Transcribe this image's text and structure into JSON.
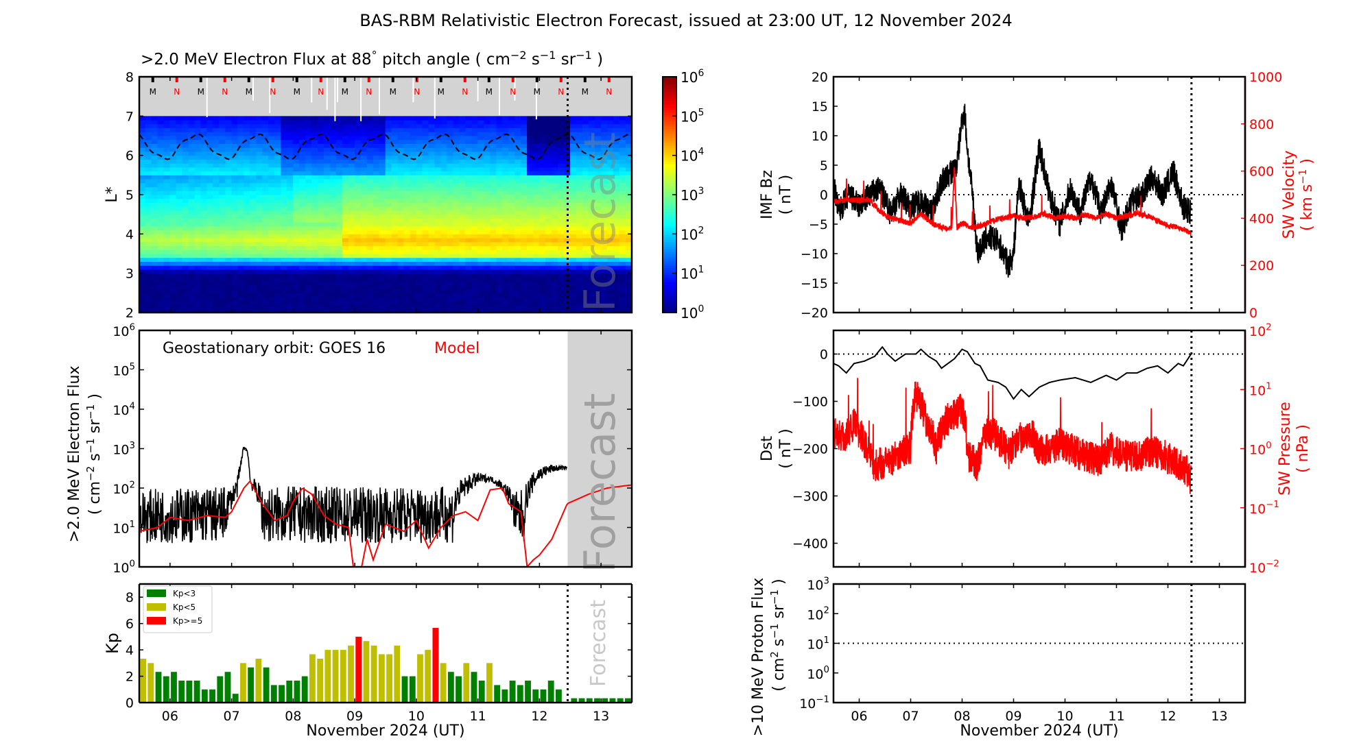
{
  "figure_title": "BAS-RBM Relativistic Electron Forecast, issued at 23:00 UT, 12 November 2024",
  "chart_data": [
    {
      "id": "lstar_flux",
      "type": "heatmap",
      "title_main": ">2.0 MeV Electron Flux at 88",
      "title_deg": "°",
      "title_rest": " pitch angle ( cm",
      "title_units": [
        "cm",
        "-2",
        "s",
        "-1",
        "sr",
        "-1"
      ],
      "ylabel": "L*",
      "xlim": [
        5.5,
        13.5
      ],
      "ylim": [
        2,
        8
      ],
      "yticks": [
        2,
        3,
        4,
        5,
        6,
        7,
        8
      ],
      "no_data_band": [
        7,
        8
      ],
      "forecast_start": 12.458,
      "forecast_label": "Forecast",
      "colorbar": {
        "scale": "log",
        "range": [
          1,
          1000000
        ],
        "ticks": [
          "10^0",
          "10^1",
          "10^2",
          "10^3",
          "10^4",
          "10^5",
          "10^6"
        ],
        "colormap": "jet"
      },
      "orbit_markers": [
        {
          "x": 5.72,
          "label": "M",
          "color": "#000000"
        },
        {
          "x": 6.11,
          "label": "N",
          "color": "#ff0000"
        },
        {
          "x": 6.5,
          "label": "M",
          "color": "#000000"
        },
        {
          "x": 6.89,
          "label": "N",
          "color": "#ff0000"
        },
        {
          "x": 7.28,
          "label": "M",
          "color": "#000000"
        },
        {
          "x": 7.67,
          "label": "N",
          "color": "#ff0000"
        },
        {
          "x": 8.06,
          "label": "M",
          "color": "#000000"
        },
        {
          "x": 8.45,
          "label": "N",
          "color": "#ff0000"
        },
        {
          "x": 8.84,
          "label": "M",
          "color": "#000000"
        },
        {
          "x": 9.23,
          "label": "N",
          "color": "#ff0000"
        },
        {
          "x": 9.62,
          "label": "M",
          "color": "#000000"
        },
        {
          "x": 10.01,
          "label": "N",
          "color": "#ff0000"
        },
        {
          "x": 10.4,
          "label": "M",
          "color": "#000000"
        },
        {
          "x": 10.79,
          "label": "N",
          "color": "#ff0000"
        },
        {
          "x": 11.18,
          "label": "M",
          "color": "#000000"
        },
        {
          "x": 11.57,
          "label": "N",
          "color": "#ff0000"
        },
        {
          "x": 11.96,
          "label": "M",
          "color": "#000000"
        },
        {
          "x": 12.35,
          "label": "N",
          "color": "#ff0000"
        },
        {
          "x": 12.74,
          "label": "M",
          "color": "#000000"
        },
        {
          "x": 13.13,
          "label": "N",
          "color": "#ff0000"
        }
      ],
      "magnetopause_dashed_line": {
        "min_L": 5.9,
        "max_L": 6.55,
        "period_days": 1.0,
        "description": "dashed black sinusoid"
      },
      "flux_structure": [
        {
          "L_range": [
            2.0,
            3.2
          ],
          "log10_flux": 0.0,
          "note": "slot/inner region dark blue"
        },
        {
          "L_range": [
            3.3,
            3.6
          ],
          "log10_flux": 2.0
        },
        {
          "L_range": [
            3.6,
            4.5
          ],
          "log10_flux_start": 3.2,
          "log10_flux_end": 4.2,
          "note": "heart of belt, intensifies after Nov 8.8"
        },
        {
          "L_range": [
            4.5,
            5.5
          ],
          "log10_flux": 2.8
        },
        {
          "L_range": [
            5.5,
            7.0
          ],
          "log10_flux": 1.2,
          "note": "outer region, dropouts near Nov 8-9 and 11.8"
        }
      ]
    },
    {
      "id": "geo_flux",
      "type": "line",
      "annotation": "Geostationary orbit:   GOES 16",
      "model_label": "Model",
      "ylabel": ">2.0 MeV Electron Flux",
      "ylabel_units": [
        "( cm",
        "-2",
        " s",
        "-1",
        " sr",
        "-1",
        " )"
      ],
      "yscale": "log",
      "ylim": [
        1,
        1000000
      ],
      "yticks": [
        "10^0",
        "10^1",
        "10^2",
        "10^3",
        "10^4",
        "10^5",
        "10^6"
      ],
      "xlim": [
        5.5,
        13.5
      ],
      "forecast_start": 12.458,
      "forecast_label": "Forecast",
      "series": [
        {
          "name": "GOES 16",
          "color": "#000000",
          "x": [
            5.5,
            6.0,
            6.5,
            6.9,
            7.0,
            7.1,
            7.15,
            7.2,
            7.25,
            7.3,
            7.5,
            8.0,
            8.5,
            9.0,
            9.5,
            10.0,
            10.4,
            10.6,
            10.8,
            11.0,
            11.2,
            11.4,
            11.6,
            11.75,
            11.9,
            12.0,
            12.2,
            12.45
          ],
          "y_env_low": [
            4,
            4,
            4,
            4,
            30,
            60,
            200,
            1000,
            800,
            100,
            4,
            4,
            4,
            4,
            4,
            4,
            4,
            4,
            60,
            120,
            150,
            80,
            4,
            4,
            80,
            150,
            250,
            300
          ],
          "y_env_high": [
            90,
            100,
            110,
            110,
            100,
            200,
            600,
            1200,
            1000,
            200,
            110,
            110,
            110,
            110,
            110,
            110,
            110,
            110,
            200,
            250,
            200,
            150,
            80,
            100,
            250,
            350,
            400,
            350
          ]
        },
        {
          "name": "Model",
          "color": "#ff0000",
          "x": [
            5.5,
            5.8,
            6.0,
            6.3,
            6.6,
            6.9,
            7.0,
            7.2,
            7.3,
            7.5,
            7.7,
            7.9,
            8.0,
            8.15,
            8.3,
            8.5,
            8.7,
            8.9,
            9.0,
            9.1,
            9.2,
            9.3,
            9.5,
            9.8,
            10.0,
            10.2,
            10.4,
            10.6,
            10.8,
            11.0,
            11.2,
            11.4,
            11.5,
            11.7,
            11.8,
            11.9,
            12.0,
            12.2,
            12.45,
            12.8,
            13.1,
            13.5
          ],
          "y": [
            8,
            10,
            18,
            15,
            20,
            18,
            25,
            100,
            150,
            40,
            15,
            20,
            45,
            100,
            70,
            20,
            12,
            10,
            0.5,
            0.8,
            5,
            1.5,
            12,
            8,
            15,
            3,
            10,
            20,
            25,
            15,
            90,
            100,
            40,
            25,
            1,
            1.5,
            2,
            5,
            40,
            70,
            100,
            120
          ]
        }
      ]
    },
    {
      "id": "kp",
      "type": "bar",
      "ylabel": "Kp",
      "ylim": [
        0,
        9
      ],
      "yticks": [
        0,
        2,
        4,
        6,
        8
      ],
      "xlim": [
        5.5,
        13.5
      ],
      "xticks": [
        "06",
        "07",
        "08",
        "09",
        "10",
        "11",
        "12",
        "13"
      ],
      "xlabel": "November 2024 (UT)",
      "bin_hours": 3,
      "first_bin_start": 5.5,
      "forecast_start": 12.458,
      "forecast_label": "Forecast",
      "legend": [
        {
          "label": "Kp<3",
          "color": "#008000"
        },
        {
          "label": "Kp<5",
          "color": "#bfbf00"
        },
        {
          "label": "Kp>=5",
          "color": "#ff0000"
        }
      ],
      "legend_position": "top-left",
      "values": [
        3.33,
        3.0,
        2.33,
        2.0,
        2.33,
        1.67,
        1.67,
        1.67,
        1.0,
        1.0,
        2.0,
        2.33,
        0.67,
        3.0,
        2.67,
        3.33,
        2.67,
        1.33,
        1.33,
        1.67,
        1.67,
        2.0,
        3.67,
        3.33,
        4.0,
        4.0,
        4.0,
        4.33,
        5.0,
        4.67,
        4.33,
        3.67,
        3.67,
        4.33,
        2.0,
        2.0,
        3.67,
        4.0,
        5.67,
        3.0,
        2.33,
        2.0,
        3.0,
        2.33,
        1.67,
        3.0,
        1.33,
        1.0,
        1.67,
        1.33,
        1.67,
        1.0,
        1.0,
        1.67,
        1.0
      ],
      "forecast_values": [
        0.33,
        0.33,
        0.33,
        0.33,
        0.33,
        0.33,
        0.33,
        0.33
      ]
    },
    {
      "id": "imf_sw_velocity",
      "type": "line",
      "ylabel_left": "IMF Bz",
      "ylabel_left_units": "( nT )",
      "ylabel_right": "SW Velocity",
      "ylabel_right_units": [
        "( km s",
        "-1",
        " )"
      ],
      "ylim_left": [
        -20,
        20
      ],
      "yticks_left": [
        -20,
        -15,
        -10,
        -5,
        0,
        5,
        10,
        15,
        20
      ],
      "ylim_right": [
        0,
        1000
      ],
      "yticks_right": [
        0,
        200,
        400,
        600,
        800,
        1000
      ],
      "xlim": [
        5.5,
        13.5
      ],
      "forecast_start": 12.458,
      "zero_line": 0,
      "series": [
        {
          "name": "IMF Bz",
          "color": "#000000",
          "axis": "left",
          "x": [
            5.5,
            5.6,
            5.8,
            6.0,
            6.2,
            6.4,
            6.6,
            6.8,
            7.0,
            7.2,
            7.4,
            7.6,
            7.8,
            7.9,
            8.0,
            8.05,
            8.1,
            8.2,
            8.3,
            8.5,
            8.7,
            8.9,
            9.0,
            9.1,
            9.3,
            9.5,
            9.7,
            9.9,
            10.1,
            10.3,
            10.5,
            10.7,
            10.9,
            11.1,
            11.3,
            11.5,
            11.7,
            11.9,
            12.1,
            12.3,
            12.45
          ],
          "y": [
            2,
            -3,
            0,
            -2,
            0,
            1,
            -3,
            0,
            -2,
            -1,
            -3,
            2,
            4,
            5,
            13,
            14,
            8,
            0,
            -10,
            -7,
            -8,
            -12,
            -10,
            2,
            -5,
            8,
            0,
            -5,
            1,
            -3,
            3,
            -3,
            2,
            -6,
            -1,
            0,
            3,
            0,
            4,
            -2,
            -3
          ]
        },
        {
          "name": "SW Velocity",
          "color": "#ff0000",
          "axis": "right",
          "x": [
            5.5,
            5.8,
            6.0,
            6.2,
            6.4,
            6.6,
            6.8,
            7.0,
            7.2,
            7.4,
            7.6,
            7.8,
            7.85,
            7.9,
            8.0,
            8.2,
            8.4,
            8.6,
            8.8,
            9.0,
            9.2,
            9.4,
            9.6,
            9.8,
            10.0,
            10.2,
            10.4,
            10.6,
            10.8,
            11.0,
            11.2,
            11.4,
            11.6,
            11.8,
            12.0,
            12.2,
            12.45
          ],
          "y": [
            470,
            480,
            475,
            480,
            430,
            400,
            390,
            380,
            420,
            380,
            360,
            360,
            620,
            360,
            380,
            360,
            370,
            390,
            400,
            410,
            400,
            405,
            420,
            400,
            410,
            400,
            415,
            400,
            420,
            400,
            410,
            420,
            410,
            390,
            370,
            360,
            340
          ]
        }
      ]
    },
    {
      "id": "dst_sw_pressure",
      "type": "line",
      "ylabel_left": "Dst",
      "ylabel_left_units": "( nT )",
      "ylabel_right": "SW Pressure",
      "ylabel_right_units": "( nPa )",
      "ylim_left": [
        -450,
        50
      ],
      "yticks_left": [
        -400,
        -300,
        -200,
        -100,
        0
      ],
      "ylim_right": [
        0.01,
        100
      ],
      "yscale_right": "log",
      "yticks_right": [
        "10^-2",
        "10^-1",
        "10^0",
        "10^1",
        "10^2"
      ],
      "xlim": [
        5.5,
        13.5
      ],
      "forecast_start": 12.458,
      "zero_line": 0,
      "series": [
        {
          "name": "Dst",
          "color": "#000000",
          "axis": "left",
          "x": [
            5.5,
            5.6,
            5.75,
            5.9,
            6.1,
            6.3,
            6.45,
            6.55,
            6.7,
            6.9,
            7.1,
            7.2,
            7.35,
            7.5,
            7.6,
            7.85,
            8.0,
            8.1,
            8.25,
            8.35,
            8.5,
            8.7,
            8.85,
            9.0,
            9.15,
            9.3,
            9.5,
            9.7,
            9.9,
            10.2,
            10.5,
            10.8,
            11.0,
            11.2,
            11.4,
            11.6,
            11.8,
            12.0,
            12.2,
            12.3,
            12.45
          ],
          "y": [
            -20,
            -25,
            -40,
            -20,
            -15,
            -5,
            15,
            0,
            -15,
            0,
            0,
            10,
            -5,
            -15,
            -30,
            -10,
            10,
            5,
            -20,
            -25,
            -55,
            -60,
            -70,
            -95,
            -75,
            -90,
            -70,
            -60,
            -55,
            -50,
            -60,
            -45,
            -55,
            -40,
            -40,
            -30,
            -25,
            -40,
            -20,
            -25,
            0
          ]
        },
        {
          "name": "SW Pressure",
          "color": "#ff0000",
          "axis": "right",
          "x": [
            5.5,
            5.7,
            5.9,
            6.1,
            6.3,
            6.5,
            6.7,
            6.9,
            7.0,
            7.1,
            7.3,
            7.5,
            7.7,
            7.9,
            8.0,
            8.1,
            8.3,
            8.5,
            8.7,
            8.9,
            9.1,
            9.3,
            9.5,
            9.7,
            9.9,
            10.1,
            10.3,
            10.5,
            10.7,
            10.9,
            11.1,
            11.3,
            11.5,
            11.7,
            11.9,
            12.1,
            12.3,
            12.45
          ],
          "y": [
            2.0,
            1.5,
            2.5,
            1.2,
            0.5,
            0.6,
            0.7,
            1.0,
            1.0,
            8.0,
            3.0,
            1.0,
            3.0,
            4.0,
            5.0,
            0.8,
            0.5,
            2.0,
            1.5,
            0.8,
            1.5,
            2.0,
            0.9,
            1.0,
            1.2,
            1.0,
            0.8,
            0.7,
            0.6,
            1.0,
            0.8,
            0.7,
            0.8,
            0.9,
            0.8,
            0.6,
            0.5,
            0.3
          ]
        }
      ]
    },
    {
      "id": "proton_flux",
      "type": "line",
      "ylabel": ">10 MeV Proton Flux",
      "ylabel_units": [
        "( cm",
        "2",
        " s",
        "-1",
        " sr",
        "-1",
        " )"
      ],
      "yscale": "log",
      "ylim": [
        0.1,
        1000
      ],
      "yticks": [
        "10^-1",
        "10^0",
        "10^1",
        "10^2",
        "10^3"
      ],
      "xlim": [
        5.5,
        13.5
      ],
      "xticks": [
        "06",
        "07",
        "08",
        "09",
        "10",
        "11",
        "12",
        "13"
      ],
      "xlabel": "November 2024 (UT)",
      "forecast_start": 12.458,
      "threshold_line": 10,
      "series": []
    }
  ]
}
